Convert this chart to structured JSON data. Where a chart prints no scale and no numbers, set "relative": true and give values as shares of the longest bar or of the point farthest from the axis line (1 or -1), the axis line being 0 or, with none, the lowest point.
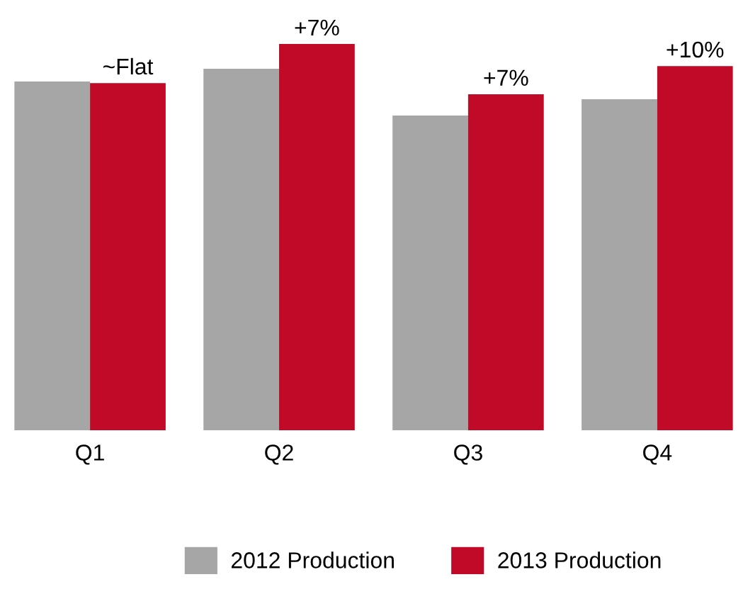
{
  "chart_data": {
    "type": "bar",
    "relative": true,
    "categories": [
      "Q1",
      "Q2",
      "Q3",
      "Q4"
    ],
    "series": [
      {
        "name": "2012 Production",
        "color": "#a6a6a6",
        "values": [
          0.903,
          0.936,
          0.815,
          0.857
        ]
      },
      {
        "name": "2013 Production",
        "color": "#c00a28",
        "values": [
          0.899,
          1.0,
          0.87,
          0.943
        ]
      }
    ],
    "annotations": [
      {
        "text": "~Flat",
        "x": "Q1",
        "y": 0.899
      },
      {
        "text": "+7%",
        "x": "Q2",
        "y": 1.0
      },
      {
        "text": "+7%",
        "x": "Q3",
        "y": 0.87
      },
      {
        "text": "+10%",
        "x": "Q4",
        "y": 0.943
      }
    ],
    "legend": "bottom",
    "grid": false
  }
}
